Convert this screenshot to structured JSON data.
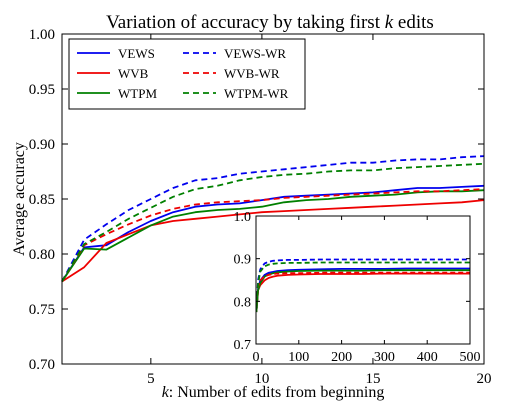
{
  "chart_data": [
    {
      "type": "line",
      "title": "Variation of accuracy by taking first k edits",
      "title_prefix": "Variation of accuracy by taking first ",
      "title_var": "k",
      "title_suffix": " edits",
      "xlabel": "k: Number of edits from beginning",
      "xlabel_var": "k",
      "xlabel_rest": ": Number of edits from beginning",
      "ylabel": "Average accuracy",
      "xlim": [
        1,
        20
      ],
      "ylim": [
        0.7,
        1.0
      ],
      "xticks": [
        5,
        10,
        15,
        20
      ],
      "yticks": [
        "0.70",
        "0.75",
        "0.80",
        "0.85",
        "0.90",
        "0.95",
        "1.00"
      ],
      "grid": false,
      "legend_position": "top-left",
      "x": [
        1,
        2,
        3,
        4,
        5,
        6,
        7,
        8,
        9,
        10,
        11,
        12,
        13,
        14,
        15,
        16,
        17,
        18,
        19,
        20
      ],
      "series": [
        {
          "name": "VEWS",
          "color": "#0000ee",
          "style": "solid",
          "values": [
            0.775,
            0.806,
            0.808,
            0.82,
            0.83,
            0.838,
            0.843,
            0.845,
            0.846,
            0.849,
            0.852,
            0.853,
            0.854,
            0.855,
            0.856,
            0.858,
            0.86,
            0.86,
            0.861,
            0.862
          ]
        },
        {
          "name": "WVB",
          "color": "#ee0000",
          "style": "solid",
          "values": [
            0.775,
            0.788,
            0.81,
            0.818,
            0.826,
            0.83,
            0.832,
            0.834,
            0.836,
            0.838,
            0.839,
            0.84,
            0.841,
            0.842,
            0.843,
            0.844,
            0.845,
            0.846,
            0.847,
            0.849
          ]
        },
        {
          "name": "WTPM",
          "color": "#008000",
          "style": "solid",
          "values": [
            0.775,
            0.805,
            0.804,
            0.815,
            0.826,
            0.834,
            0.838,
            0.84,
            0.841,
            0.843,
            0.847,
            0.849,
            0.85,
            0.852,
            0.853,
            0.854,
            0.856,
            0.857,
            0.857,
            0.858
          ]
        },
        {
          "name": "VEWS-WR",
          "color": "#0000ee",
          "style": "dashed",
          "values": [
            0.775,
            0.813,
            0.827,
            0.84,
            0.85,
            0.86,
            0.867,
            0.869,
            0.873,
            0.875,
            0.877,
            0.879,
            0.881,
            0.883,
            0.883,
            0.885,
            0.886,
            0.886,
            0.888,
            0.889
          ]
        },
        {
          "name": "WVB-WR",
          "color": "#ee0000",
          "style": "dashed",
          "values": [
            0.775,
            0.808,
            0.818,
            0.827,
            0.835,
            0.841,
            0.845,
            0.847,
            0.848,
            0.849,
            0.851,
            0.852,
            0.853,
            0.854,
            0.855,
            0.856,
            0.857,
            0.857,
            0.858,
            0.859
          ]
        },
        {
          "name": "WTPM-WR",
          "color": "#008000",
          "style": "dashed",
          "values": [
            0.775,
            0.809,
            0.82,
            0.832,
            0.842,
            0.852,
            0.859,
            0.862,
            0.867,
            0.87,
            0.872,
            0.873,
            0.875,
            0.876,
            0.876,
            0.878,
            0.879,
            0.88,
            0.881,
            0.882
          ]
        }
      ]
    },
    {
      "type": "line",
      "title": "",
      "xlabel": "",
      "ylabel": "",
      "xlim": [
        0,
        500
      ],
      "ylim": [
        0.7,
        1.0
      ],
      "xticks": [
        0,
        100,
        200,
        300,
        400,
        500
      ],
      "yticks": [
        "0.7",
        "0.8",
        "0.9",
        "1.0"
      ],
      "grid": false,
      "x": [
        1,
        5,
        10,
        20,
        30,
        40,
        50,
        75,
        100,
        150,
        200,
        250,
        300,
        350,
        400,
        450,
        500
      ],
      "series": [
        {
          "color": "#0000ee",
          "style": "solid",
          "values": [
            0.775,
            0.83,
            0.849,
            0.862,
            0.867,
            0.869,
            0.871,
            0.873,
            0.874,
            0.875,
            0.876,
            0.876,
            0.876,
            0.877,
            0.877,
            0.877,
            0.877
          ]
        },
        {
          "color": "#ee0000",
          "style": "solid",
          "values": [
            0.775,
            0.826,
            0.838,
            0.849,
            0.855,
            0.858,
            0.86,
            0.862,
            0.863,
            0.864,
            0.864,
            0.864,
            0.865,
            0.865,
            0.865,
            0.865,
            0.865
          ]
        },
        {
          "color": "#008000",
          "style": "solid",
          "values": [
            0.775,
            0.826,
            0.843,
            0.858,
            0.863,
            0.866,
            0.868,
            0.87,
            0.871,
            0.872,
            0.872,
            0.872,
            0.873,
            0.873,
            0.873,
            0.873,
            0.873
          ]
        },
        {
          "color": "#0000ee",
          "style": "dashed",
          "values": [
            0.775,
            0.85,
            0.875,
            0.889,
            0.893,
            0.895,
            0.896,
            0.897,
            0.897,
            0.898,
            0.898,
            0.898,
            0.898,
            0.898,
            0.898,
            0.898,
            0.898
          ]
        },
        {
          "color": "#ee0000",
          "style": "dashed",
          "values": [
            0.775,
            0.835,
            0.849,
            0.859,
            0.862,
            0.864,
            0.865,
            0.866,
            0.866,
            0.867,
            0.867,
            0.867,
            0.867,
            0.867,
            0.867,
            0.867,
            0.867
          ]
        },
        {
          "color": "#008000",
          "style": "dashed",
          "values": [
            0.775,
            0.842,
            0.87,
            0.882,
            0.886,
            0.888,
            0.889,
            0.89,
            0.89,
            0.891,
            0.891,
            0.891,
            0.891,
            0.891,
            0.891,
            0.891,
            0.891
          ]
        }
      ]
    }
  ]
}
